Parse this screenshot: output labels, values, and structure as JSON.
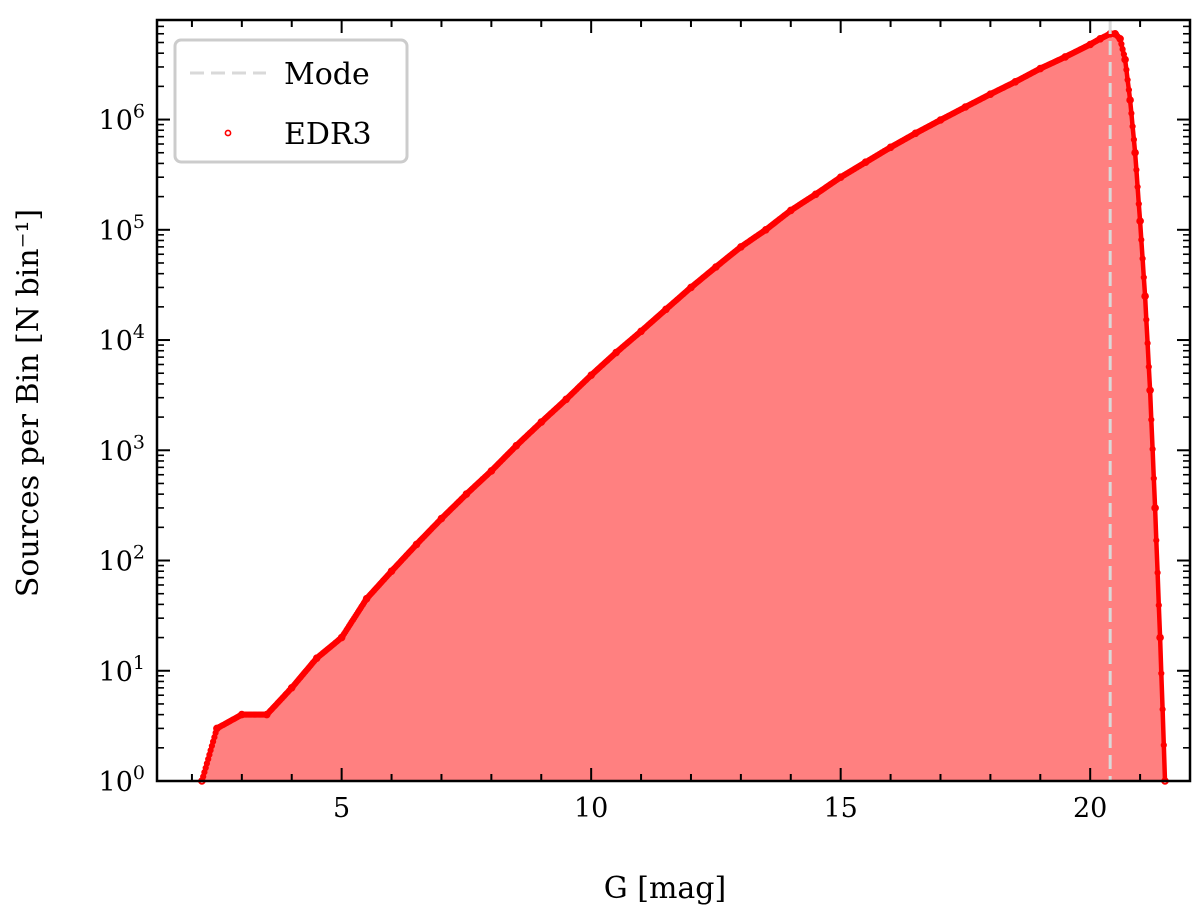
{
  "chart_data": {
    "type": "area",
    "xlabel": "G [mag]",
    "ylabel": "Sources per Bin [N bin⁻¹]",
    "xlim": [
      1.3,
      22.0
    ],
    "ylim": [
      1,
      8000000
    ],
    "yscale": "log",
    "x_ticks": [
      5,
      10,
      15,
      20
    ],
    "x_tick_labels": [
      "5",
      "10",
      "15",
      "20"
    ],
    "y_ticks": [
      1,
      10,
      100,
      1000,
      10000,
      100000,
      1000000
    ],
    "y_tick_labels": [
      {
        "base": "10",
        "exp": "0"
      },
      {
        "base": "10",
        "exp": "1"
      },
      {
        "base": "10",
        "exp": "2"
      },
      {
        "base": "10",
        "exp": "3"
      },
      {
        "base": "10",
        "exp": "4"
      },
      {
        "base": "10",
        "exp": "5"
      },
      {
        "base": "10",
        "exp": "6"
      }
    ],
    "grid": false,
    "legend_position": "top-left",
    "mode_line": {
      "label": "Mode",
      "x": 20.4,
      "color": "#d9d9d9"
    },
    "series": [
      {
        "name": "EDR3",
        "color": "#ff0000",
        "fill_color": "#ff8080",
        "x": [
          2.2,
          2.5,
          3.0,
          3.5,
          4.0,
          4.5,
          5.0,
          5.5,
          6.0,
          6.5,
          7.0,
          7.5,
          8.0,
          8.5,
          9.0,
          9.5,
          10.0,
          10.5,
          11.0,
          11.5,
          12.0,
          12.5,
          13.0,
          13.5,
          14.0,
          14.5,
          15.0,
          15.5,
          16.0,
          16.5,
          17.0,
          17.5,
          18.0,
          18.5,
          19.0,
          19.5,
          20.0,
          20.2,
          20.4,
          20.5,
          20.6,
          20.7,
          20.8,
          20.9,
          21.0,
          21.1,
          21.2,
          21.3,
          21.4,
          21.5
        ],
        "y": [
          1,
          3,
          4,
          4,
          7,
          13,
          20,
          45,
          80,
          140,
          240,
          400,
          650,
          1100,
          1800,
          2900,
          4800,
          7700,
          12000,
          19000,
          30000,
          46000,
          70000,
          100000,
          150000,
          210000,
          300000,
          410000,
          560000,
          750000,
          990000,
          1300000,
          1700000,
          2200000,
          2900000,
          3700000,
          4800000,
          5400000,
          6000000,
          6000000,
          5400000,
          3500000,
          1500000,
          500000,
          120000,
          25000,
          3500,
          300,
          20,
          1
        ]
      }
    ]
  }
}
